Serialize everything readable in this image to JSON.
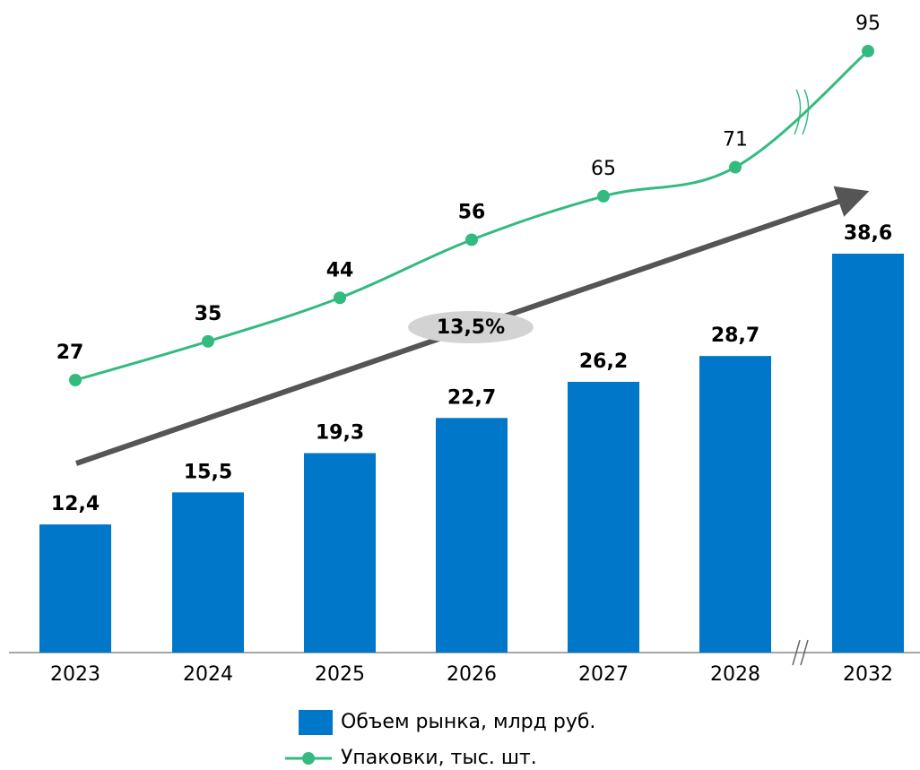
{
  "chart_data": {
    "type": "bar",
    "categories": [
      "2023",
      "2024",
      "2025",
      "2026",
      "2027",
      "2028",
      "2032"
    ],
    "series": [
      {
        "name": "Объем рынка, млрд руб.",
        "type": "bar",
        "color": "#0077c8",
        "values": [
          12.4,
          15.5,
          19.3,
          22.7,
          26.2,
          28.7,
          38.6
        ],
        "value_labels": [
          "12,4",
          "15,5",
          "19,3",
          "22,7",
          "26,2",
          "28,7",
          "38,6"
        ]
      },
      {
        "name": "Упаковки, тыс. шт.",
        "type": "line",
        "color": "#33bb7f",
        "values": [
          27,
          35,
          44,
          56,
          65,
          71,
          95
        ]
      }
    ],
    "annotations": [
      "13,5%"
    ]
  }
}
